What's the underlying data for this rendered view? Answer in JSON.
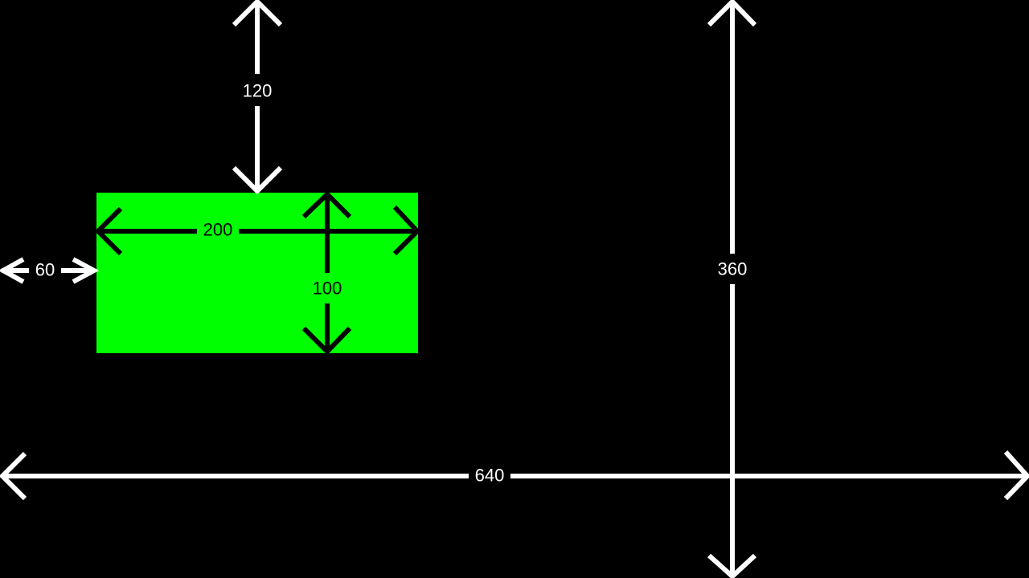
{
  "colors": {
    "background": "#000000",
    "box": "#00ff00",
    "dimension_on_background": "#ffffff",
    "dimension_on_box": "#000000"
  },
  "dimensions": {
    "box_top_offset": "120",
    "box_left_offset": "60",
    "box_width": "200",
    "box_height": "100",
    "half_height": "360",
    "half_width": "640"
  }
}
